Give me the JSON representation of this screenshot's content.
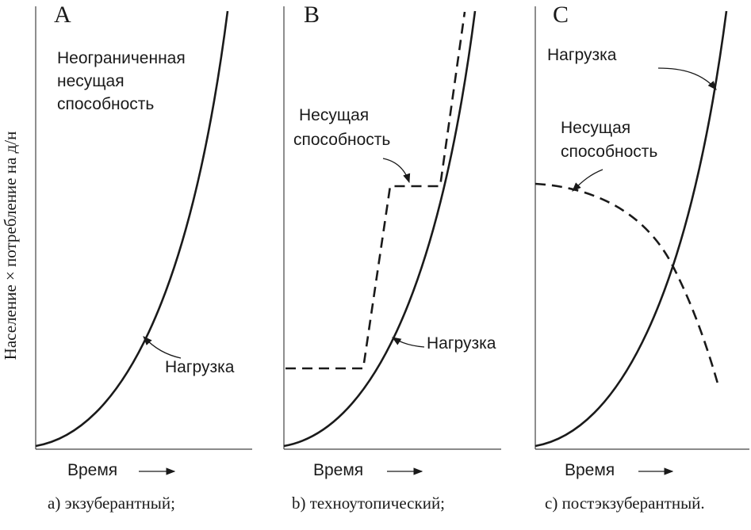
{
  "y_axis_label": "Население × потребление на д/н",
  "panels": [
    {
      "letter": "A",
      "x_label": "Время",
      "caption": "a) экзуберантный;",
      "annotations": [
        "Неограниченная",
        "несущая",
        "способность"
      ],
      "load_label": "Нагрузка"
    },
    {
      "letter": "B",
      "x_label": "Время",
      "caption": "b) техноутопический;",
      "capacity_label": [
        "Несущая",
        "способность"
      ],
      "load_label": "Нагрузка"
    },
    {
      "letter": "C",
      "x_label": "Время",
      "caption": "c) постэкзуберантный.",
      "capacity_label": [
        "Несущая",
        "способность"
      ],
      "load_label": "Нагрузка"
    }
  ]
}
